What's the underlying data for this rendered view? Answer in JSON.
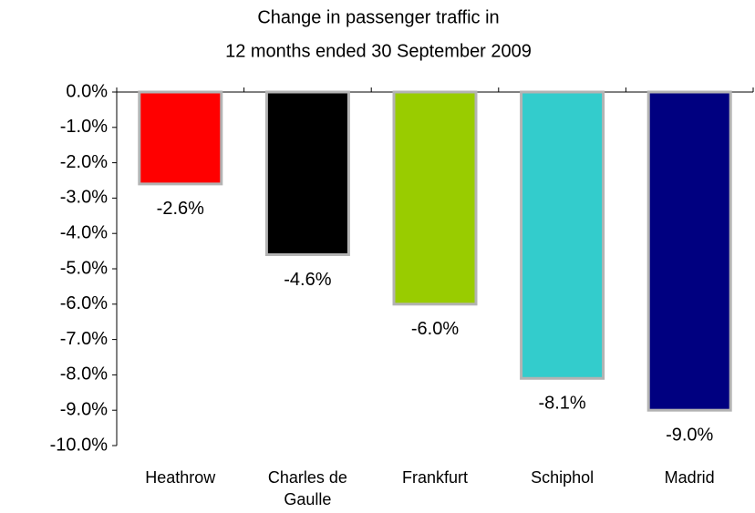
{
  "chart_data": {
    "type": "bar",
    "title": [
      "Change in passenger traffic in",
      "12 months ended 30 September 2009"
    ],
    "categories": [
      "Heathrow",
      "Charles de Gaulle",
      "Frankfurt",
      "Schiphol",
      "Madrid"
    ],
    "values": [
      -2.6,
      -4.6,
      -6.0,
      -8.1,
      -9.0
    ],
    "value_labels": [
      "-2.6%",
      "-4.6%",
      "-6.0%",
      "-8.1%",
      "-9.0%"
    ],
    "colors": [
      "#ff0000",
      "#000000",
      "#99cc00",
      "#33cccc",
      "#000080"
    ],
    "ylim": [
      -10,
      0
    ],
    "yticks": [
      {
        "value": 0,
        "label": "0.0%"
      },
      {
        "value": -1,
        "label": "-1.0%"
      },
      {
        "value": -2,
        "label": "-2.0%"
      },
      {
        "value": -3,
        "label": "-3.0%"
      },
      {
        "value": -4,
        "label": "-4.0%"
      },
      {
        "value": -5,
        "label": "-5.0%"
      },
      {
        "value": -6,
        "label": "-6.0%"
      },
      {
        "value": -7,
        "label": "-7.0%"
      },
      {
        "value": -8,
        "label": "-8.0%"
      },
      {
        "value": -9,
        "label": "-9.0%"
      },
      {
        "value": -10,
        "label": "-10.0%"
      }
    ],
    "grid": false
  }
}
